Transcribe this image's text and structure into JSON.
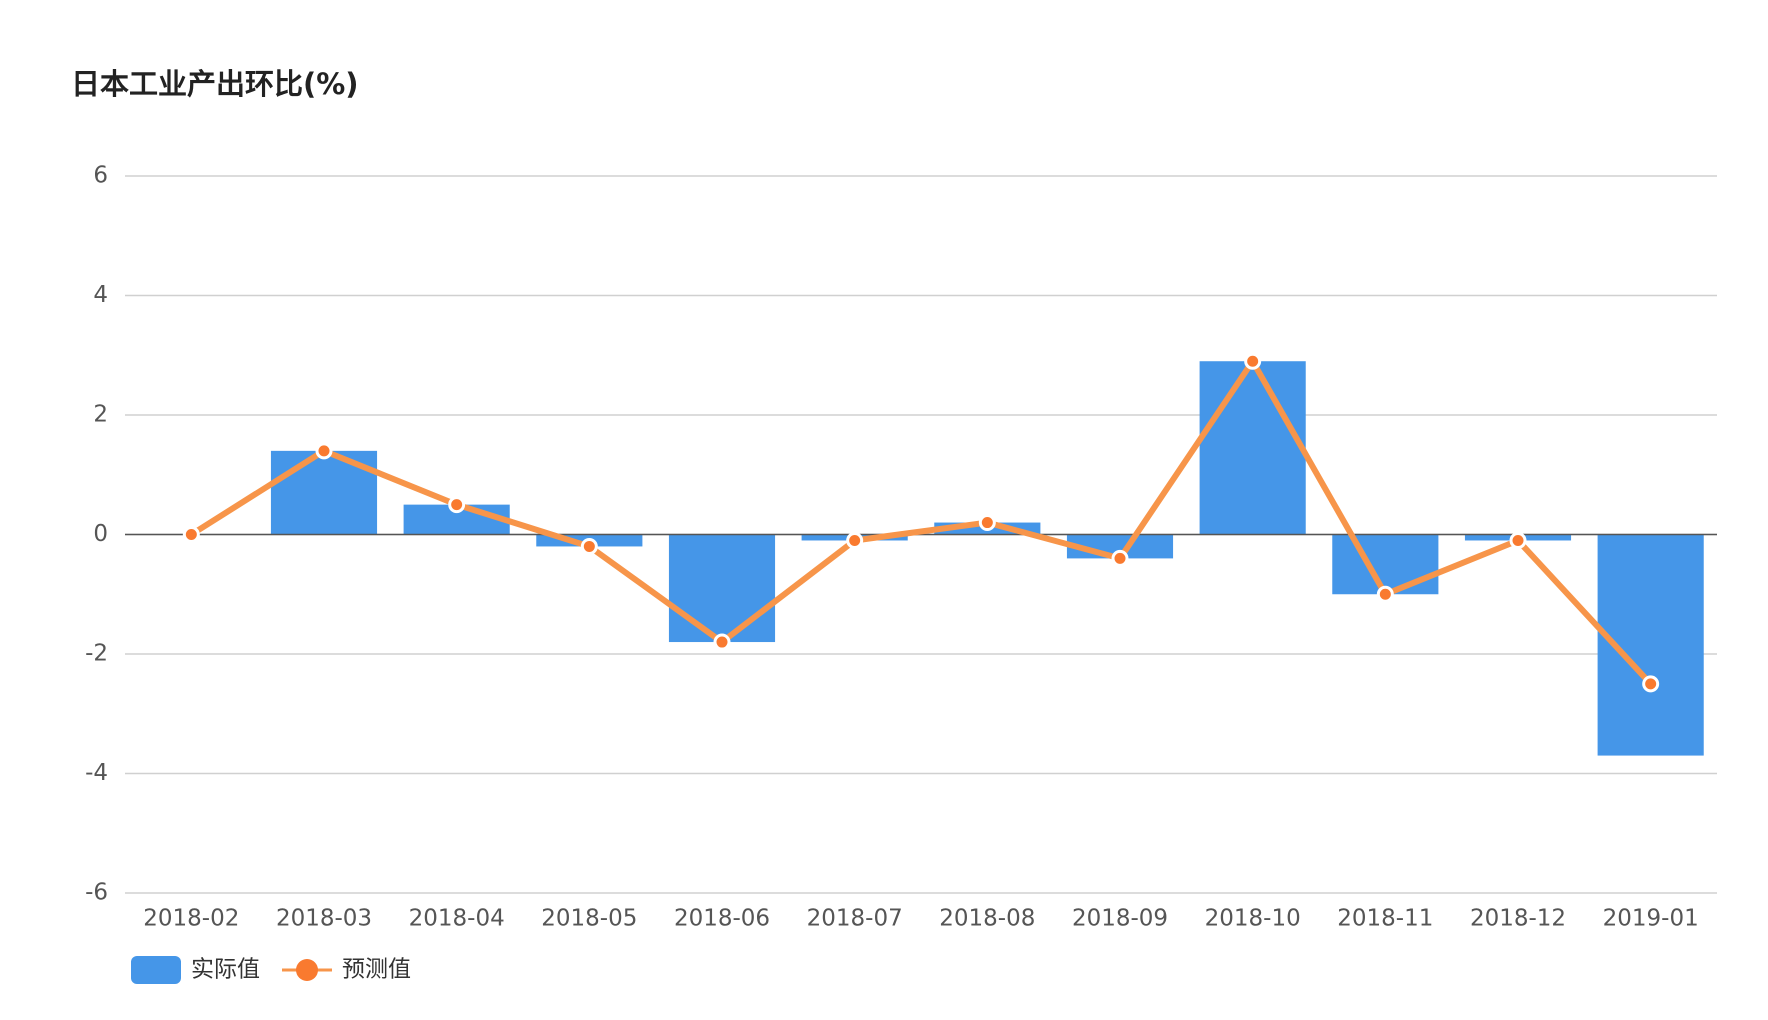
{
  "chart_data": {
    "type": "bar+line",
    "title": "日本工业产出环比(%)",
    "categories": [
      "2018-02",
      "2018-03",
      "2018-04",
      "2018-05",
      "2018-06",
      "2018-07",
      "2018-08",
      "2018-09",
      "2018-10",
      "2018-11",
      "2018-12",
      "2019-01"
    ],
    "series": [
      {
        "name": "实际值",
        "type": "bar",
        "color": "#4596e8",
        "values": [
          0,
          1.4,
          0.5,
          -0.2,
          -1.8,
          -0.1,
          0.2,
          -0.4,
          2.9,
          -1.0,
          -0.1,
          -3.7
        ]
      },
      {
        "name": "预测值",
        "type": "line",
        "color": "#f7954a",
        "values": [
          0,
          1.4,
          0.5,
          -0.2,
          -1.8,
          -0.1,
          0.2,
          -0.4,
          2.9,
          -1.0,
          -0.1,
          -2.5
        ]
      }
    ],
    "ylim": [
      -6,
      6
    ],
    "yticks": [
      -6,
      -4,
      -2,
      0,
      2,
      4,
      6
    ],
    "grid": true,
    "legend": "bottom-left"
  }
}
